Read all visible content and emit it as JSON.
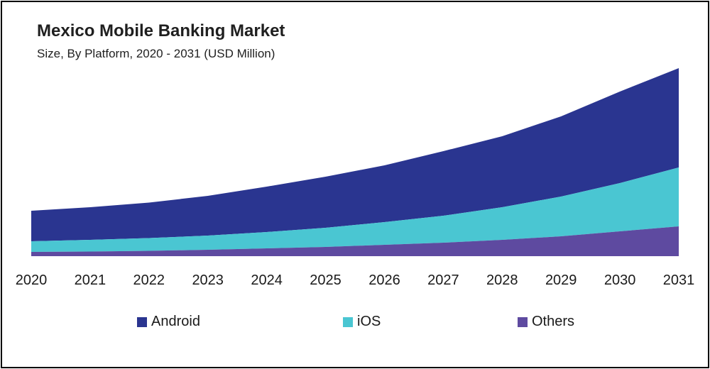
{
  "chart_data": {
    "type": "area",
    "stacked": true,
    "title": "Mexico Mobile Banking Market",
    "subtitle": "Size, By Platform, 2020 - 2031 (USD Million)",
    "xlabel": "",
    "ylabel": "",
    "categories": [
      "2020",
      "2021",
      "2022",
      "2023",
      "2024",
      "2025",
      "2026",
      "2027",
      "2028",
      "2029",
      "2030",
      "2031"
    ],
    "series": [
      {
        "name": "Others",
        "color": "#5e4aa0",
        "values": [
          6,
          6.5,
          7.5,
          9,
          11,
          13,
          16,
          19,
          23,
          28,
          35,
          42
        ]
      },
      {
        "name": "iOS",
        "color": "#4ac6d2",
        "values": [
          15,
          16.5,
          18,
          20,
          23,
          27,
          32,
          38,
          46,
          56,
          68,
          83
        ]
      },
      {
        "name": "Android",
        "color": "#2a3590",
        "values": [
          43,
          46,
          50,
          56,
          64,
          72,
          80,
          91,
          100,
          113,
          129,
          140
        ]
      }
    ],
    "ylim": [
      0,
      300
    ],
    "grid": false,
    "legend_position": "bottom"
  }
}
